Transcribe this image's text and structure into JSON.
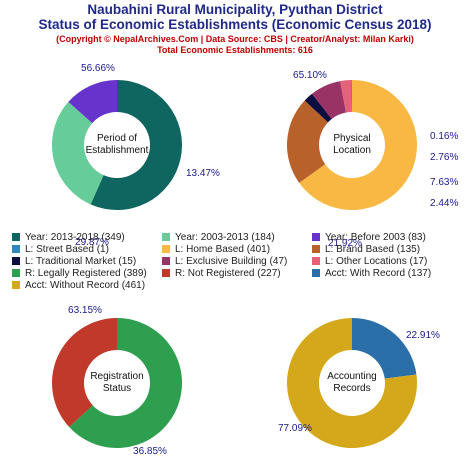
{
  "header": {
    "title_line1": "Naubahini Rural Municipality, Pyuthan District",
    "title_line2": "Status of Economic Establishments (Economic Census 2018)",
    "copyright": "(Copyright © NepalArchives.Com | Data Source: CBS | Creator/Analyst: Milan Karki)",
    "total": "Total Economic Establishments: 616"
  },
  "chart_data": [
    {
      "type": "pie",
      "center_label": [
        "Period of",
        "Establishment"
      ],
      "slices": [
        {
          "label": "Year: 2013-2018",
          "value": 349,
          "pct": "56.66%",
          "color": "#0f6660"
        },
        {
          "label": "Year: 2003-2013",
          "value": 184,
          "pct": "29.87%",
          "color": "#66cc99"
        },
        {
          "label": "Year: Before 2003",
          "value": 83,
          "pct": "13.47%",
          "color": "#6633cc"
        }
      ]
    },
    {
      "type": "pie",
      "center_label": [
        "Physical",
        "Location"
      ],
      "slices": [
        {
          "label": "L: Home Based",
          "value": 401,
          "pct": "65.10%",
          "color": "#f9b844"
        },
        {
          "label": "L: Brand Based",
          "value": 135,
          "pct": "21.92%",
          "color": "#b8612a"
        },
        {
          "label": "L: Traditional Market",
          "value": 15,
          "pct": "2.44%",
          "color": "#0d0d40"
        },
        {
          "label": "L: Exclusive Building",
          "value": 47,
          "pct": "7.63%",
          "color": "#993366"
        },
        {
          "label": "L: Other Locations",
          "value": 17,
          "pct": "2.76%",
          "color": "#e8607a"
        },
        {
          "label": "L: Street Based",
          "value": 1,
          "pct": "0.16%",
          "color": "#2e86c1"
        }
      ]
    },
    {
      "type": "pie",
      "center_label": [
        "Registration",
        "Status"
      ],
      "slices": [
        {
          "label": "R: Legally Registered",
          "value": 389,
          "pct": "63.15%",
          "color": "#2e9e4f"
        },
        {
          "label": "R: Not Registered",
          "value": 227,
          "pct": "36.85%",
          "color": "#c0392b"
        }
      ]
    },
    {
      "type": "pie",
      "center_label": [
        "Accounting",
        "Records"
      ],
      "slices": [
        {
          "label": "Acct: With Record",
          "value": 137,
          "pct": "22.91%",
          "color": "#2a6fa8"
        },
        {
          "label": "Acct: Without Record",
          "value": 461,
          "pct": "77.09%",
          "color": "#d4a81a"
        }
      ]
    }
  ],
  "legend": [
    {
      "text": "Year: 2013-2018 (349)",
      "color": "#0f6660"
    },
    {
      "text": "Year: 2003-2013 (184)",
      "color": "#66cc99"
    },
    {
      "text": "Year: Before 2003 (83)",
      "color": "#6633cc"
    },
    {
      "text": "L: Street Based (1)",
      "color": "#2e86c1"
    },
    {
      "text": "L: Home Based (401)",
      "color": "#f9b844"
    },
    {
      "text": "L: Brand Based (135)",
      "color": "#b8612a"
    },
    {
      "text": "L: Traditional Market (15)",
      "color": "#0d0d40"
    },
    {
      "text": "L: Exclusive Building (47)",
      "color": "#993366"
    },
    {
      "text": "L: Other Locations (17)",
      "color": "#e8607a"
    },
    {
      "text": "R: Legally Registered (389)",
      "color": "#2e9e4f"
    },
    {
      "text": "R: Not Registered (227)",
      "color": "#c0392b"
    },
    {
      "text": "Acct: With Record (137)",
      "color": "#2a6fa8"
    },
    {
      "text": "Acct: Without Record (461)",
      "color": "#d4a81a"
    }
  ],
  "colors": {
    "title": "#1f2a8a",
    "subtitle": "#c00000",
    "pct_label": "#1a1a8c"
  }
}
